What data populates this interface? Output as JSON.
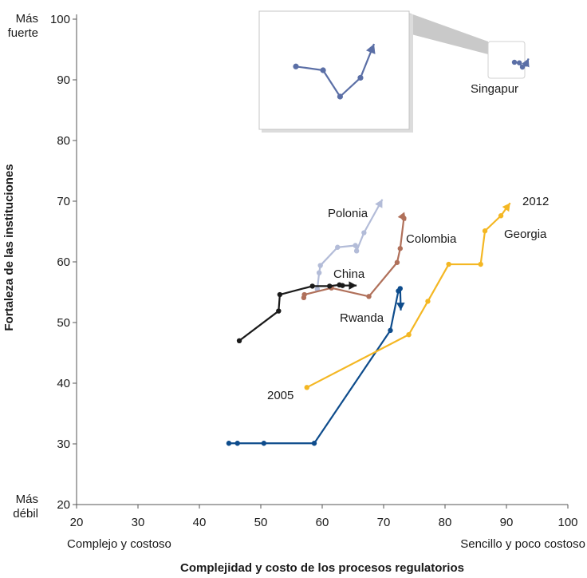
{
  "chart_data": {
    "type": "line",
    "xlabel": "Complejidad y costo de los procesos regulatorios",
    "ylabel": "Fortaleza de las instituciones",
    "xlim": [
      20,
      100
    ],
    "ylim": [
      20,
      100
    ],
    "xticks": [
      20,
      30,
      40,
      50,
      60,
      70,
      80,
      90,
      100
    ],
    "yticks": [
      20,
      30,
      40,
      50,
      60,
      70,
      80,
      90,
      100
    ],
    "x_end_labels": {
      "left": "Complejo y costoso",
      "right": "Sencillo y poco costoso"
    },
    "y_end_labels": {
      "top": [
        "Más",
        "fuerte"
      ],
      "bottom": [
        "Más",
        "débil"
      ]
    },
    "year_labels": {
      "start": "2005",
      "end": "2012"
    },
    "grid": false,
    "series": [
      {
        "name": "Singapur",
        "color": "#5b6fa6",
        "x": [
          91.3,
          92.1,
          92.6,
          93.2,
          93.6
        ],
        "y": [
          92.9,
          92.8,
          92.1,
          92.6,
          93.5
        ]
      },
      {
        "name": "Polonia",
        "color": "#b3bcd8",
        "x": [
          59.2,
          59.5,
          59.7,
          62.5,
          65.4,
          65.6,
          66.8,
          69.8
        ],
        "y": [
          55.5,
          58.2,
          59.4,
          62.4,
          62.7,
          61.8,
          64.8,
          70.3
        ]
      },
      {
        "name": "Colombia",
        "color": "#b0705a",
        "x": [
          57.0,
          57.1,
          61.5,
          67.6,
          72.2,
          72.7,
          73.3,
          73.6
        ],
        "y": [
          54.1,
          54.6,
          55.7,
          54.3,
          59.9,
          62.2,
          67.2,
          66.8
        ]
      },
      {
        "name": "China",
        "color": "#1a1a1a",
        "x": [
          46.5,
          52.9,
          53.1,
          58.4,
          61.2,
          62.8,
          63.3,
          65.6
        ],
        "y": [
          47.0,
          51.9,
          54.6,
          56.0,
          56.0,
          56.2,
          56.1,
          56.1
        ]
      },
      {
        "name": "Rwanda",
        "color": "#0e4c8c",
        "x": [
          44.8,
          46.2,
          50.5,
          58.7,
          71.1,
          72.4,
          72.7,
          72.8
        ],
        "y": [
          30.1,
          30.1,
          30.1,
          30.1,
          48.7,
          55.2,
          55.6,
          52.0
        ]
      },
      {
        "name": "Georgia",
        "color": "#f4b723",
        "x": [
          57.5,
          74.1,
          77.2,
          80.6,
          85.8,
          86.5,
          89.1,
          90.6
        ],
        "y": [
          39.3,
          48.0,
          53.5,
          59.6,
          59.6,
          65.1,
          67.6,
          69.7
        ]
      }
    ],
    "inset": {
      "series": "Singapur",
      "color": "#5b6fa6",
      "x": [
        91.3,
        92.1,
        92.6,
        93.2,
        93.6
      ],
      "y": [
        92.9,
        92.8,
        92.1,
        92.6,
        93.5
      ]
    }
  }
}
